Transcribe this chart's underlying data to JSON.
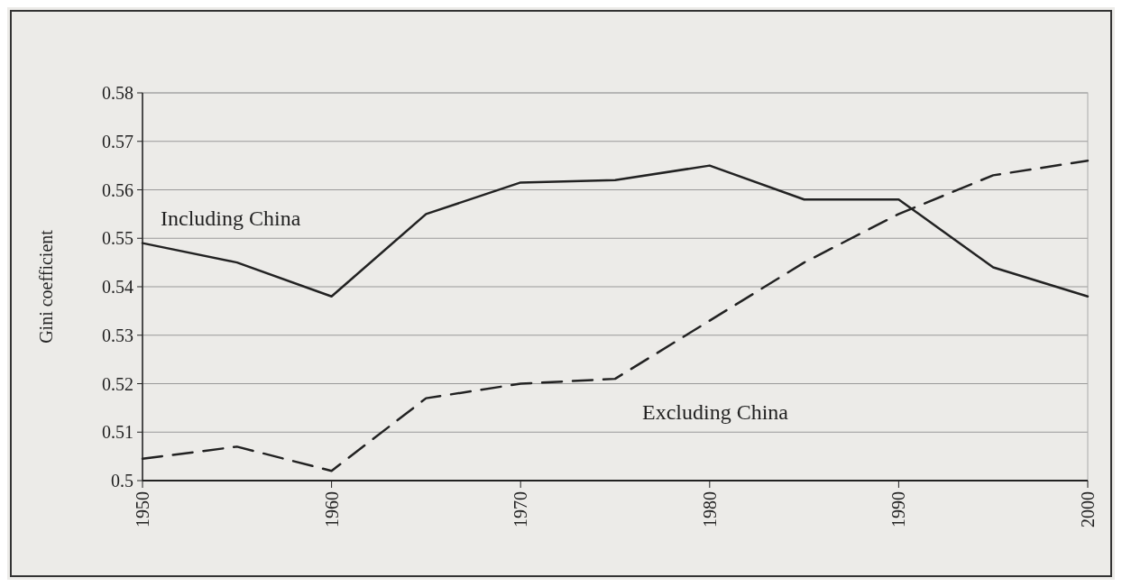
{
  "chart_data": {
    "type": "line",
    "ylabel": "Gini coefficient",
    "x": [
      1950,
      1955,
      1960,
      1965,
      1970,
      1975,
      1980,
      1985,
      1990,
      1995,
      2000
    ],
    "series": [
      {
        "name": "Including China",
        "color": "#222222",
        "line_style": "solid",
        "values": [
          0.549,
          0.545,
          0.538,
          0.555,
          0.5615,
          0.562,
          0.565,
          0.558,
          0.558,
          0.544,
          0.538
        ]
      },
      {
        "name": "Excluding China",
        "color": "#222222",
        "line_style": "dashed",
        "values": [
          0.5045,
          0.507,
          0.502,
          0.517,
          0.52,
          0.521,
          0.533,
          0.545,
          0.555,
          0.563,
          0.566
        ]
      }
    ],
    "xlim": [
      1950,
      2000
    ],
    "xticks": [
      1950,
      1960,
      1970,
      1980,
      1990,
      2000
    ],
    "ylim": [
      0.5,
      0.58
    ],
    "yticks": [
      0.5,
      0.51,
      0.52,
      0.53,
      0.54,
      0.55,
      0.56,
      0.57,
      0.58
    ],
    "grid": "y",
    "marker": "none"
  }
}
